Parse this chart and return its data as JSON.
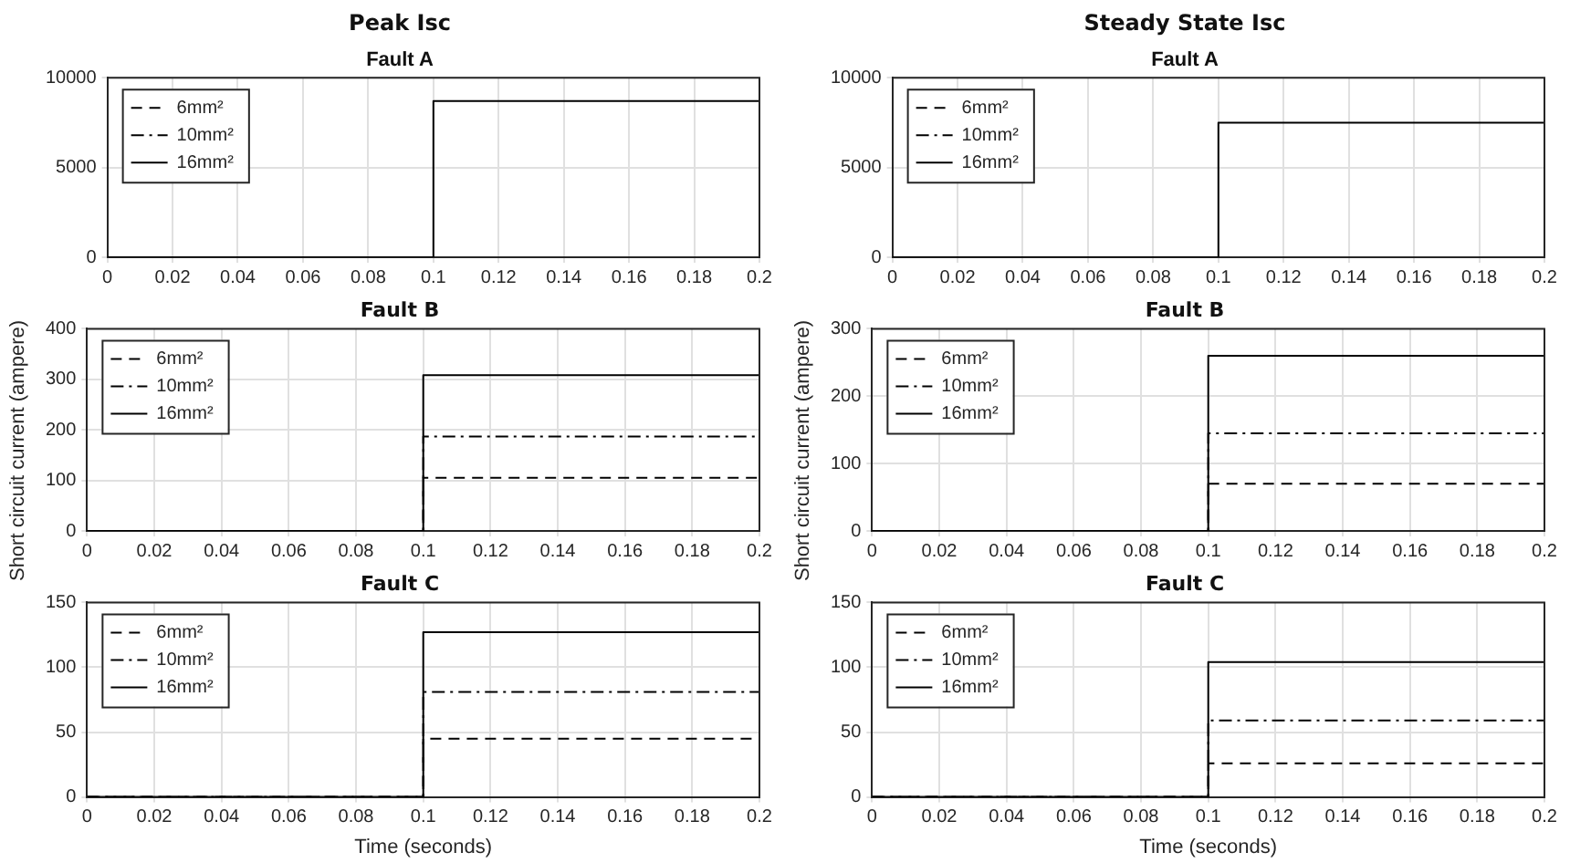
{
  "chart_data": [
    {
      "type": "line",
      "title": "Peak Isc",
      "subtitle": "Fault A",
      "x": [
        0,
        0.1,
        0.1,
        0.2
      ],
      "xlim": [
        0,
        0.2
      ],
      "xticks": [
        0,
        0.02,
        0.04,
        0.06,
        0.08,
        0.1,
        0.12,
        0.14,
        0.16,
        0.18,
        0.2
      ],
      "ylim": [
        0,
        10000
      ],
      "yticks": [
        0,
        5000,
        10000
      ],
      "grid": true,
      "legend": "top left",
      "series": [
        {
          "name": "6mm²",
          "color": "#000000",
          "line_style": "dashed",
          "values": [
            null,
            null,
            null,
            null
          ]
        },
        {
          "name": "10mm²",
          "color": "#000000",
          "line_style": "dashdot",
          "values": [
            null,
            null,
            null,
            null
          ]
        },
        {
          "name": "16mm²",
          "color": "#000000",
          "line_style": "solid",
          "values": [
            0,
            0,
            8700,
            8700
          ]
        }
      ]
    },
    {
      "type": "line",
      "title": "Steady State Isc",
      "subtitle": "Fault A",
      "x": [
        0,
        0.1,
        0.1,
        0.2
      ],
      "xlim": [
        0,
        0.2
      ],
      "xticks": [
        0,
        0.02,
        0.04,
        0.06,
        0.08,
        0.1,
        0.12,
        0.14,
        0.16,
        0.18,
        0.2
      ],
      "ylim": [
        0,
        10000
      ],
      "yticks": [
        0,
        5000,
        10000
      ],
      "grid": true,
      "legend": "top left",
      "series": [
        {
          "name": "6mm²",
          "color": "#000000",
          "line_style": "dashed",
          "values": [
            null,
            null,
            null,
            null
          ]
        },
        {
          "name": "10mm²",
          "color": "#000000",
          "line_style": "dashdot",
          "values": [
            null,
            null,
            null,
            null
          ]
        },
        {
          "name": "16mm²",
          "color": "#000000",
          "line_style": "solid",
          "values": [
            0,
            0,
            7500,
            7500
          ]
        }
      ]
    },
    {
      "type": "line",
      "title": "Fault B",
      "ylabel": "Short circuit current (ampere)",
      "x": [
        0,
        0.1,
        0.1,
        0.2
      ],
      "xlim": [
        0,
        0.2
      ],
      "xticks": [
        0,
        0.02,
        0.04,
        0.06,
        0.08,
        0.1,
        0.12,
        0.14,
        0.16,
        0.18,
        0.2
      ],
      "ylim": [
        0,
        400
      ],
      "yticks": [
        0,
        100,
        200,
        300,
        400
      ],
      "grid": true,
      "legend": "top left",
      "series": [
        {
          "name": "6mm²",
          "color": "#000000",
          "line_style": "dashed",
          "values": [
            0,
            0,
            105,
            105
          ]
        },
        {
          "name": "10mm²",
          "color": "#000000",
          "line_style": "dashdot",
          "values": [
            0,
            0,
            187,
            187
          ]
        },
        {
          "name": "16mm²",
          "color": "#000000",
          "line_style": "solid",
          "values": [
            0,
            0,
            308,
            308
          ]
        }
      ]
    },
    {
      "type": "line",
      "title": "Fault B",
      "ylabel": "Short circuit current (ampere)",
      "x": [
        0,
        0.1,
        0.1,
        0.2
      ],
      "xlim": [
        0,
        0.2
      ],
      "xticks": [
        0,
        0.02,
        0.04,
        0.06,
        0.08,
        0.1,
        0.12,
        0.14,
        0.16,
        0.18,
        0.2
      ],
      "ylim": [
        0,
        300
      ],
      "yticks": [
        0,
        100,
        200,
        300
      ],
      "grid": true,
      "legend": "top left",
      "series": [
        {
          "name": "6mm²",
          "color": "#000000",
          "line_style": "dashed",
          "values": [
            0,
            0,
            70,
            70
          ]
        },
        {
          "name": "10mm²",
          "color": "#000000",
          "line_style": "dashdot",
          "values": [
            0,
            0,
            145,
            145
          ]
        },
        {
          "name": "16mm²",
          "color": "#000000",
          "line_style": "solid",
          "values": [
            0,
            0,
            260,
            260
          ]
        }
      ]
    },
    {
      "type": "line",
      "title": "Fault C",
      "xlabel": "Time (seconds)",
      "x": [
        0,
        0.1,
        0.1,
        0.2
      ],
      "xlim": [
        0,
        0.2
      ],
      "xticks": [
        0,
        0.02,
        0.04,
        0.06,
        0.08,
        0.1,
        0.12,
        0.14,
        0.16,
        0.18,
        0.2
      ],
      "ylim": [
        0,
        150
      ],
      "yticks": [
        0,
        50,
        100,
        150
      ],
      "grid": true,
      "legend": "top left",
      "series": [
        {
          "name": "6mm²",
          "color": "#000000",
          "line_style": "dashed",
          "values": [
            0,
            0,
            45,
            45
          ]
        },
        {
          "name": "10mm²",
          "color": "#000000",
          "line_style": "dashdot",
          "values": [
            0,
            0,
            81,
            81
          ]
        },
        {
          "name": "16mm²",
          "color": "#000000",
          "line_style": "solid",
          "values": [
            0,
            0,
            127,
            127
          ]
        }
      ]
    },
    {
      "type": "line",
      "title": "Fault C",
      "xlabel": "Time (seconds)",
      "x": [
        0,
        0.1,
        0.1,
        0.2
      ],
      "xlim": [
        0,
        0.2
      ],
      "xticks": [
        0,
        0.02,
        0.04,
        0.06,
        0.08,
        0.1,
        0.12,
        0.14,
        0.16,
        0.18,
        0.2
      ],
      "ylim": [
        0,
        150
      ],
      "yticks": [
        0,
        50,
        100,
        150
      ],
      "grid": true,
      "legend": "top left",
      "series": [
        {
          "name": "6mm²",
          "color": "#000000",
          "line_style": "dashed",
          "values": [
            0,
            0,
            26,
            26
          ]
        },
        {
          "name": "10mm²",
          "color": "#000000",
          "line_style": "dashdot",
          "values": [
            0,
            0,
            59,
            59
          ]
        },
        {
          "name": "16mm²",
          "color": "#000000",
          "line_style": "solid",
          "values": [
            0,
            0,
            104,
            104
          ]
        }
      ]
    }
  ]
}
